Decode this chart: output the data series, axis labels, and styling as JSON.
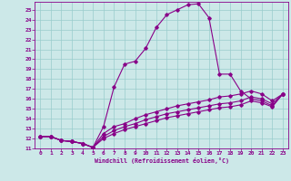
{
  "xlabel": "Windchill (Refroidissement éolien,°C)",
  "xlim": [
    -0.5,
    23.5
  ],
  "ylim": [
    11,
    25.8
  ],
  "xticks": [
    0,
    1,
    2,
    3,
    4,
    5,
    6,
    7,
    8,
    9,
    10,
    11,
    12,
    13,
    14,
    15,
    16,
    17,
    18,
    19,
    20,
    21,
    22,
    23
  ],
  "yticks": [
    11,
    12,
    13,
    14,
    15,
    16,
    17,
    18,
    19,
    20,
    21,
    22,
    23,
    24,
    25
  ],
  "bg_color": "#cce8e8",
  "line_color": "#880088",
  "grid_color": "#99cccc",
  "curve1_x": [
    0,
    1,
    2,
    3,
    4,
    5,
    6,
    7,
    8,
    9,
    10,
    11,
    12,
    13,
    14,
    15,
    16,
    17,
    18,
    19,
    20,
    21,
    22,
    23
  ],
  "curve1_y": [
    12.2,
    12.2,
    11.8,
    11.7,
    11.5,
    11.1,
    13.2,
    17.2,
    19.5,
    19.8,
    21.1,
    23.2,
    24.5,
    25.0,
    25.5,
    25.6,
    24.2,
    18.5,
    18.5,
    16.8,
    16.0,
    15.8,
    15.3,
    16.5
  ],
  "curve2_x": [
    0,
    1,
    2,
    3,
    4,
    5,
    6,
    7,
    8,
    9,
    10,
    11,
    12,
    13,
    14,
    15,
    16,
    17,
    18,
    19,
    20,
    21,
    22,
    23
  ],
  "curve2_y": [
    12.2,
    12.2,
    11.8,
    11.7,
    11.5,
    11.1,
    12.5,
    13.2,
    13.5,
    14.0,
    14.4,
    14.7,
    15.0,
    15.3,
    15.5,
    15.7,
    15.9,
    16.2,
    16.3,
    16.5,
    16.8,
    16.5,
    15.8,
    16.5
  ],
  "curve3_x": [
    0,
    1,
    2,
    3,
    4,
    5,
    6,
    7,
    8,
    9,
    10,
    11,
    12,
    13,
    14,
    15,
    16,
    17,
    18,
    19,
    20,
    21,
    22,
    23
  ],
  "curve3_y": [
    12.2,
    12.2,
    11.8,
    11.7,
    11.5,
    11.1,
    12.2,
    12.8,
    13.2,
    13.5,
    13.9,
    14.2,
    14.5,
    14.7,
    14.9,
    15.1,
    15.3,
    15.5,
    15.6,
    15.8,
    16.2,
    16.0,
    15.5,
    16.5
  ],
  "curve4_x": [
    0,
    1,
    2,
    3,
    4,
    5,
    6,
    7,
    8,
    9,
    10,
    11,
    12,
    13,
    14,
    15,
    16,
    17,
    18,
    19,
    20,
    21,
    22,
    23
  ],
  "curve4_y": [
    12.2,
    12.2,
    11.8,
    11.7,
    11.5,
    11.1,
    12.0,
    12.5,
    12.9,
    13.2,
    13.5,
    13.8,
    14.1,
    14.3,
    14.5,
    14.7,
    14.9,
    15.1,
    15.2,
    15.4,
    15.8,
    15.6,
    15.2,
    16.5
  ]
}
